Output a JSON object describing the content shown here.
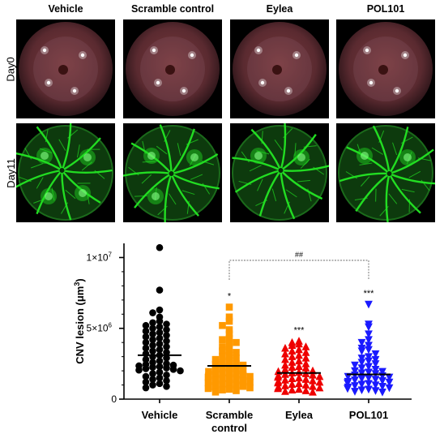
{
  "figure": {
    "columns": [
      "Vehicle",
      "Scramble control",
      "Eylea",
      "POL101"
    ],
    "rows": [
      "Day0",
      "Day11"
    ]
  },
  "colors": {
    "vehicle": "#000000",
    "scramble": "#ff9900",
    "eylea": "#ee0000",
    "pol101": "#1a1aff",
    "fundus_bg": "#000000",
    "angiogram": "#22dd22"
  },
  "chart_data": {
    "type": "scatter",
    "title": "",
    "ylabel_main": "CNV lesion (μm",
    "ylabel_sup": "3",
    "ylabel_close": ")",
    "ylim": [
      0,
      11000000
    ],
    "yticks": [
      {
        "value": 0,
        "label": "0"
      },
      {
        "value": 5000000,
        "label": "5×10",
        "sup": "6"
      },
      {
        "value": 10000000,
        "label": "1×10",
        "sup": "7"
      }
    ],
    "categories": [
      "Vehicle",
      "Scramble",
      "Eylea",
      "POL101"
    ],
    "category_line2": [
      "",
      "control",
      "",
      ""
    ],
    "marker_shapes": [
      "circle",
      "square",
      "triangle-up",
      "triangle-down"
    ],
    "series": [
      {
        "name": "Vehicle",
        "mean": 3100000,
        "significance": "",
        "values": [
          10700000,
          7700000,
          6300000,
          6100000,
          5800000,
          5500000,
          5400000,
          5300000,
          5200000,
          5100000,
          5000000,
          4900000,
          4800000,
          4700000,
          4600000,
          4500000,
          4400000,
          4300000,
          4200000,
          4100000,
          4000000,
          3900000,
          3800000,
          3700000,
          3600000,
          3500000,
          3400000,
          3300000,
          3200000,
          3100000,
          3000000,
          2900000,
          2800000,
          2700000,
          2600000,
          2500000,
          2450000,
          2400000,
          2350000,
          2300000,
          2250000,
          2200000,
          2150000,
          2100000,
          2050000,
          2000000,
          1900000,
          1800000,
          1700000,
          1600000,
          1500000,
          1400000,
          1300000,
          1200000,
          1100000,
          1000000,
          900000,
          800000
        ]
      },
      {
        "name": "Scramble control",
        "mean": 2350000,
        "significance": "*",
        "values": [
          6500000,
          5800000,
          5500000,
          5200000,
          4900000,
          4600000,
          4300000,
          4200000,
          4000000,
          3900000,
          3700000,
          3500000,
          3400000,
          3300000,
          3100000,
          3000000,
          2900000,
          2800000,
          2700000,
          2600000,
          2500000,
          2450000,
          2400000,
          2300000,
          2200000,
          2150000,
          2100000,
          2000000,
          1950000,
          1900000,
          1850000,
          1800000,
          1750000,
          1700000,
          1650000,
          1600000,
          1550000,
          1500000,
          1450000,
          1400000,
          1350000,
          1300000,
          1250000,
          1200000,
          1150000,
          1100000,
          1050000,
          1000000,
          950000,
          900000,
          850000,
          800000,
          750000,
          700000,
          650000,
          600000,
          500000
        ]
      },
      {
        "name": "Eylea",
        "mean": 1850000,
        "significance": "***",
        "values": [
          4100000,
          4000000,
          3900000,
          3800000,
          3700000,
          3600000,
          3500000,
          3400000,
          3300000,
          3200000,
          3100000,
          3000000,
          2900000,
          2800000,
          2700000,
          2600000,
          2500000,
          2400000,
          2300000,
          2250000,
          2200000,
          2100000,
          2000000,
          1950000,
          1900000,
          1850000,
          1800000,
          1750000,
          1700000,
          1650000,
          1600000,
          1550000,
          1500000,
          1450000,
          1400000,
          1350000,
          1300000,
          1250000,
          1200000,
          1150000,
          1100000,
          1050000,
          1000000,
          950000,
          900000,
          850000,
          800000,
          750000,
          700000,
          650000,
          600000,
          550000,
          500000
        ]
      },
      {
        "name": "POL101",
        "mean": 1750000,
        "significance": "***",
        "values": [
          6700000,
          5300000,
          5100000,
          4600000,
          4200000,
          4000000,
          3800000,
          3600000,
          3500000,
          3400000,
          3200000,
          3000000,
          2900000,
          2800000,
          2700000,
          2600000,
          2500000,
          2400000,
          2300000,
          2200000,
          2100000,
          2000000,
          1950000,
          1900000,
          1850000,
          1800000,
          1700000,
          1650000,
          1600000,
          1550000,
          1500000,
          1450000,
          1400000,
          1350000,
          1300000,
          1250000,
          1200000,
          1150000,
          1100000,
          1050000,
          1000000,
          950000,
          900000,
          850000,
          800000,
          750000,
          700000,
          650000,
          600000,
          550000,
          500000
        ]
      }
    ],
    "comparison": {
      "from": "Scramble control",
      "to": "POL101",
      "label": "##",
      "y": 9800000
    }
  }
}
